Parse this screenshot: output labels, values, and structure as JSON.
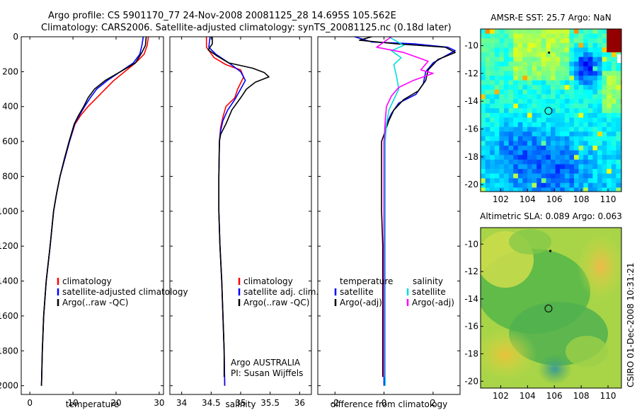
{
  "header": {
    "line1": "Argo profile: CS 5901170_77 24-Nov-2008 20081125_28 14.695S 105.562E",
    "line2": "Climatology: CARS2006. Satellite-adjusted climatology: synTS_20081125.nc (0.18d later)"
  },
  "side_label": "CSIRO 01-Dec-2008 10:31:21",
  "chart_data": [
    {
      "type": "line",
      "panel": "temperature",
      "xlabel": "temperature",
      "ylabel": "",
      "xlim": [
        -2,
        31
      ],
      "ylim": [
        2050,
        0
      ],
      "xticks": [
        0,
        10,
        20,
        30
      ],
      "yticks": [
        0,
        200,
        400,
        600,
        800,
        1000,
        1200,
        1400,
        1600,
        1800,
        2000
      ],
      "legend": {
        "placement": "lower-right",
        "entries": [
          "climatology",
          "satellite-adjusted climatology",
          "Argo(..raw -QC)"
        ]
      },
      "series": [
        {
          "name": "climatology",
          "color": "#ff0000",
          "points": [
            [
              27.5,
              0
            ],
            [
              27.2,
              50
            ],
            [
              26.5,
              100
            ],
            [
              24.5,
              150
            ],
            [
              22,
              200
            ],
            [
              19.5,
              250
            ],
            [
              17.5,
              300
            ],
            [
              15.5,
              350
            ],
            [
              13.5,
              400
            ],
            [
              11.8,
              450
            ],
            [
              10.5,
              500
            ],
            [
              9.2,
              600
            ],
            [
              8.1,
              700
            ],
            [
              7,
              800
            ],
            [
              6.2,
              900
            ],
            [
              5.5,
              1000
            ],
            [
              4.7,
              1200
            ],
            [
              3.8,
              1400
            ],
            [
              3.2,
              1600
            ],
            [
              2.9,
              1800
            ],
            [
              2.7,
              2000
            ]
          ]
        },
        {
          "name": "satellite-adjusted climatology",
          "color": "#0000ff",
          "points": [
            [
              26.3,
              0
            ],
            [
              26,
              50
            ],
            [
              25.5,
              100
            ],
            [
              24,
              150
            ],
            [
              21,
              200
            ],
            [
              18,
              250
            ],
            [
              15.5,
              300
            ],
            [
              14,
              350
            ],
            [
              12.7,
              400
            ],
            [
              11.5,
              450
            ],
            [
              10.4,
              500
            ],
            [
              9.2,
              600
            ],
            [
              8.1,
              700
            ],
            [
              7,
              800
            ],
            [
              6.2,
              900
            ],
            [
              5.5,
              1000
            ],
            [
              4.7,
              1200
            ],
            [
              3.8,
              1400
            ],
            [
              3.2,
              1600
            ],
            [
              2.9,
              1800
            ],
            [
              2.7,
              2000
            ]
          ]
        },
        {
          "name": "Argo(..raw -QC)",
          "color": "#000000",
          "points": [
            [
              27,
              0
            ],
            [
              26.8,
              50
            ],
            [
              26,
              90
            ],
            [
              24.5,
              150
            ],
            [
              21,
              200
            ],
            [
              17.5,
              250
            ],
            [
              15,
              300
            ],
            [
              13.5,
              350
            ],
            [
              12.5,
              400
            ],
            [
              11.3,
              450
            ],
            [
              10.3,
              500
            ],
            [
              9.1,
              600
            ],
            [
              8,
              700
            ],
            [
              7,
              800
            ],
            [
              6.2,
              900
            ],
            [
              5.5,
              1000
            ],
            [
              4.7,
              1200
            ],
            [
              3.8,
              1400
            ],
            [
              3.2,
              1600
            ],
            [
              2.9,
              1800
            ],
            [
              2.7,
              2000
            ]
          ]
        }
      ]
    },
    {
      "type": "line",
      "panel": "salinity",
      "xlabel": "salinity",
      "ylabel": "",
      "xlim": [
        33.8,
        36.2
      ],
      "ylim": [
        2050,
        0
      ],
      "xticks": [
        34,
        34.5,
        35,
        35.5,
        36
      ],
      "legend": {
        "placement": "lower-right",
        "entries": [
          "climatology",
          "satellite adj. clim.",
          "Argo(..raw -QC)"
        ]
      },
      "annotation": {
        "line1": "Argo AUSTRALIA",
        "line2": "PI: Susan Wijffels"
      },
      "series": [
        {
          "name": "climatology",
          "color": "#ff0000",
          "points": [
            [
              34.42,
              0
            ],
            [
              34.42,
              60
            ],
            [
              34.55,
              120
            ],
            [
              34.75,
              160
            ],
            [
              35,
              190
            ],
            [
              35.05,
              230
            ],
            [
              34.95,
              300
            ],
            [
              34.9,
              350
            ],
            [
              34.75,
              400
            ],
            [
              34.7,
              460
            ],
            [
              34.66,
              520
            ],
            [
              34.64,
              600
            ],
            [
              34.63,
              800
            ],
            [
              34.63,
              1000
            ],
            [
              34.65,
              1200
            ],
            [
              34.68,
              1400
            ],
            [
              34.7,
              1600
            ],
            [
              34.72,
              1800
            ],
            [
              34.73,
              2000
            ]
          ]
        },
        {
          "name": "satellite adj. clim.",
          "color": "#0000ff",
          "points": [
            [
              34.48,
              0
            ],
            [
              34.46,
              60
            ],
            [
              34.58,
              100
            ],
            [
              34.8,
              150
            ],
            [
              35.0,
              200
            ],
            [
              35.08,
              250
            ],
            [
              35.0,
              300
            ],
            [
              34.9,
              360
            ],
            [
              34.78,
              420
            ],
            [
              34.7,
              480
            ],
            [
              34.66,
              540
            ],
            [
              34.64,
              600
            ],
            [
              34.63,
              800
            ],
            [
              34.63,
              1000
            ],
            [
              34.65,
              1200
            ],
            [
              34.68,
              1400
            ],
            [
              34.7,
              1600
            ],
            [
              34.72,
              1800
            ],
            [
              34.73,
              2000
            ]
          ]
        },
        {
          "name": "Argo(..raw -QC)",
          "color": "#000000",
          "points": [
            [
              34.52,
              0
            ],
            [
              34.52,
              40
            ],
            [
              34.45,
              75
            ],
            [
              34.6,
              110
            ],
            [
              34.8,
              150
            ],
            [
              35.2,
              180
            ],
            [
              35.4,
              205
            ],
            [
              35.48,
              230
            ],
            [
              35.25,
              260
            ],
            [
              35.1,
              300
            ],
            [
              35.0,
              350
            ],
            [
              34.85,
              420
            ],
            [
              34.75,
              500
            ],
            [
              34.66,
              560
            ],
            [
              34.64,
              600
            ],
            [
              34.63,
              800
            ],
            [
              34.63,
              1000
            ],
            [
              34.65,
              1200
            ],
            [
              34.68,
              1400
            ],
            [
              34.7,
              1600
            ],
            [
              34.72,
              1800
            ],
            [
              34.72,
              1950
            ]
          ]
        }
      ]
    },
    {
      "type": "line",
      "panel": "difference",
      "xlabel": "difference from climatology",
      "ylabel": "",
      "xlim": [
        -2.7,
        3.1
      ],
      "ylim": [
        2050,
        0
      ],
      "xticks": [
        -2,
        0,
        2
      ],
      "legend": {
        "placement": "lower-right",
        "group1": {
          "title": "temperature",
          "entries": [
            "satellite",
            "Argo(-adj)"
          ]
        },
        "group2": {
          "title": "salinity",
          "entries": [
            "satellite",
            "Argo(-adj)"
          ]
        }
      },
      "series": [
        {
          "name": "temperature satellite",
          "color": "#0000ff",
          "points": [
            [
              -1.2,
              0
            ],
            [
              -0.5,
              30
            ],
            [
              1.2,
              40
            ],
            [
              2.6,
              60
            ],
            [
              2.9,
              80
            ],
            [
              2.5,
              110
            ],
            [
              2,
              150
            ],
            [
              1.7,
              200
            ],
            [
              1.6,
              270
            ],
            [
              1.3,
              330
            ],
            [
              0.6,
              380
            ],
            [
              0.3,
              440
            ],
            [
              0.1,
              500
            ],
            [
              0,
              600
            ],
            [
              0,
              800
            ],
            [
              0,
              1000
            ],
            [
              0,
              1200
            ],
            [
              0,
              1400
            ],
            [
              0,
              1600
            ],
            [
              0,
              1800
            ],
            [
              0,
              2000
            ]
          ]
        },
        {
          "name": "temperature Argo(-adj)",
          "color": "#000000",
          "points": [
            [
              -0.5,
              0
            ],
            [
              -1,
              20
            ],
            [
              0.5,
              40
            ],
            [
              2.5,
              60
            ],
            [
              2.9,
              90
            ],
            [
              2.2,
              130
            ],
            [
              1.8,
              190
            ],
            [
              1.7,
              250
            ],
            [
              1.4,
              310
            ],
            [
              0.8,
              360
            ],
            [
              0.4,
              420
            ],
            [
              0.2,
              480
            ],
            [
              -0.1,
              600
            ],
            [
              -0.1,
              800
            ],
            [
              -0.1,
              1000
            ],
            [
              -0.05,
              1200
            ],
            [
              -0.05,
              1400
            ],
            [
              -0.05,
              1600
            ],
            [
              -0.05,
              1800
            ],
            [
              -0.05,
              1950
            ]
          ]
        },
        {
          "name": "salinity satellite",
          "color": "#00dddd",
          "points": [
            [
              0.2,
              0
            ],
            [
              0.8,
              50
            ],
            [
              0.3,
              80
            ],
            [
              0.7,
              120
            ],
            [
              0.4,
              160
            ],
            [
              0.5,
              220
            ],
            [
              0.6,
              300
            ],
            [
              0.4,
              360
            ],
            [
              0.2,
              420
            ],
            [
              0.1,
              500
            ],
            [
              0.05,
              600
            ],
            [
              0.05,
              800
            ],
            [
              0.05,
              1200
            ],
            [
              0.05,
              1600
            ],
            [
              0.05,
              2000
            ]
          ]
        },
        {
          "name": "salinity Argo(-adj)",
          "color": "#ff00ff",
          "points": [
            [
              0.3,
              0
            ],
            [
              -0.3,
              60
            ],
            [
              0.8,
              90
            ],
            [
              1.8,
              140
            ],
            [
              1.5,
              190
            ],
            [
              2,
              210
            ],
            [
              1.2,
              250
            ],
            [
              0.6,
              290
            ],
            [
              0.3,
              340
            ],
            [
              0.1,
              400
            ],
            [
              0.05,
              480
            ],
            [
              0,
              600
            ],
            [
              0,
              800
            ],
            [
              0,
              1200
            ],
            [
              0,
              1600
            ],
            [
              0,
              1950
            ]
          ]
        }
      ]
    },
    {
      "type": "heatmap",
      "panel": "sst-map",
      "title": "AMSR-E SST: 25.7 Argo: NaN",
      "xlim": [
        100.5,
        111
      ],
      "ylim": [
        -20.5,
        -8.8
      ],
      "xticks": [
        102,
        104,
        106,
        108,
        110
      ],
      "yticks": [
        -10,
        -12,
        -14,
        -16,
        -18,
        -20
      ],
      "markers": [
        {
          "kind": "circle",
          "x": 105.562,
          "y": -14.695
        },
        {
          "kind": "dot",
          "x": 105.6,
          "y": -10.5
        }
      ]
    },
    {
      "type": "heatmap",
      "panel": "sla-map",
      "title": "Altimetric SLA: 0.089 Argo: 0.063",
      "xlim": [
        100.5,
        111
      ],
      "ylim": [
        -20.5,
        -8.8
      ],
      "xticks": [
        102,
        104,
        106,
        108,
        110
      ],
      "yticks": [
        -10,
        -12,
        -14,
        -16,
        -18,
        -20
      ],
      "markers": [
        {
          "kind": "circle",
          "x": 105.562,
          "y": -14.695
        },
        {
          "kind": "dot",
          "x": 105.7,
          "y": -10.5
        }
      ]
    }
  ]
}
